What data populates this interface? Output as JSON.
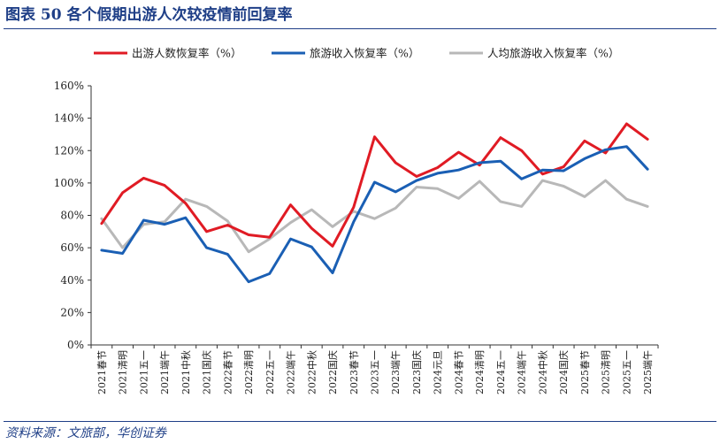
{
  "header": {
    "title": "图表 50 各个假期出游人次较疫情前回复率"
  },
  "footer": {
    "source": "资料来源：文旅部，华创证券"
  },
  "chart_data": {
    "type": "line",
    "title": "图表 50 各个假期出游人次较疫情前回复率",
    "xlabel": "",
    "ylabel": "",
    "ylim": [
      0,
      160
    ],
    "yticks": [
      0,
      20,
      40,
      60,
      80,
      100,
      120,
      140,
      160
    ],
    "ytick_labels": [
      "0%",
      "20%",
      "40%",
      "60%",
      "80%",
      "100%",
      "120%",
      "140%",
      "160%"
    ],
    "legend_position": "top",
    "grid": false,
    "categories": [
      "2021春节",
      "2021清明",
      "2021五一",
      "2021端午",
      "2021中秋",
      "2021国庆",
      "2022春节",
      "2022清明",
      "2022五一",
      "2022端午",
      "2022中秋",
      "2022国庆",
      "2023春节",
      "2023五一",
      "2023端午",
      "2023国庆",
      "2024元旦",
      "2024春节",
      "2024清明",
      "2024五一",
      "2024端午",
      "2024中秋",
      "2024国庆",
      "2025春节",
      "2025清明",
      "2025五一",
      "2025端午"
    ],
    "series": [
      {
        "name": "出游人数恢复率（%）",
        "color": "#e01b24",
        "values": [
          75,
          94,
          103,
          98.5,
          87.5,
          70,
          74,
          68,
          66.5,
          86.5,
          72,
          61,
          85,
          128.5,
          112.5,
          104,
          109.5,
          119,
          111,
          128,
          120,
          105.5,
          110,
          126,
          118.5,
          136.5,
          127
        ]
      },
      {
        "name": "旅游收入恢复率（%）",
        "color": "#1a5fb4",
        "values": [
          58.5,
          56.5,
          77,
          74.5,
          78.5,
          60,
          56,
          39,
          44,
          65.5,
          60.5,
          44.5,
          76,
          100.5,
          94.5,
          101.5,
          106,
          108,
          112.5,
          113.5,
          102.5,
          108,
          107.5,
          115,
          120.5,
          122.5,
          108.5
        ]
      },
      {
        "name": "人均旅游收入恢复率（%）",
        "color": "#b8b8b8",
        "values": [
          78,
          60,
          74.5,
          76,
          90,
          85.5,
          76.5,
          57.5,
          65.5,
          75.5,
          83.5,
          73,
          82.5,
          78,
          84.5,
          97.5,
          96.5,
          90.5,
          101,
          88.5,
          85.5,
          101.5,
          98,
          91.5,
          101.5,
          90,
          85.5
        ]
      }
    ]
  }
}
